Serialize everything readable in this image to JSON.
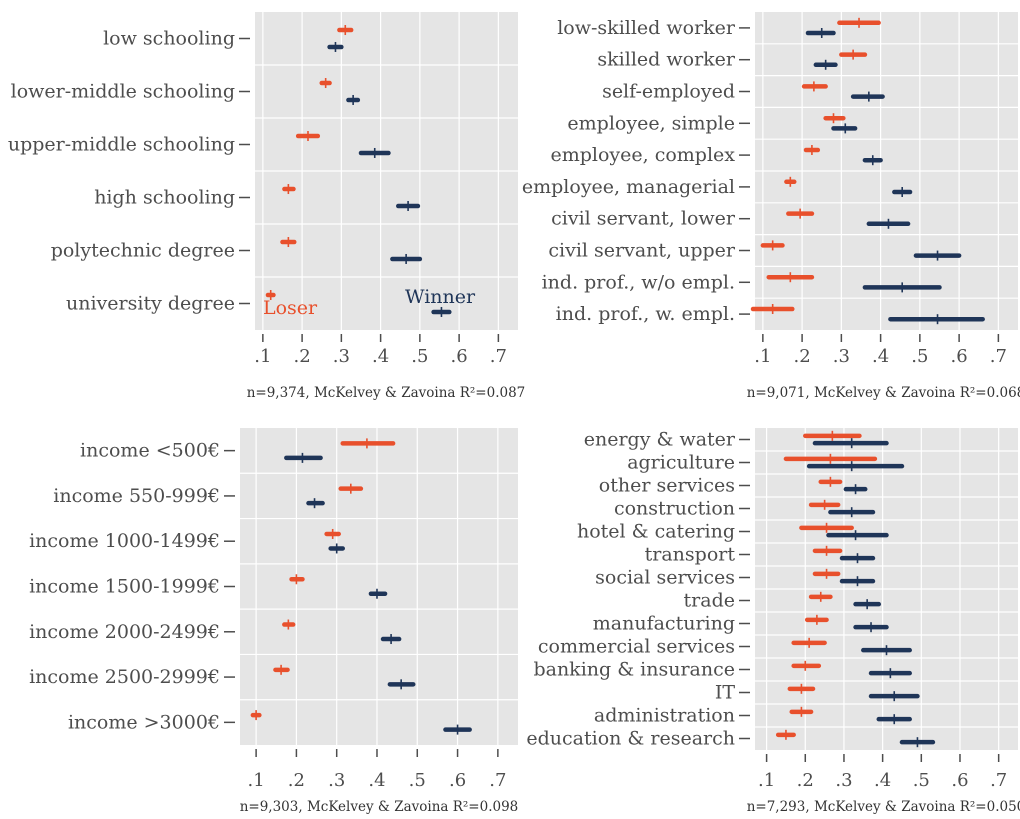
{
  "colors": {
    "loser": "#e8502c",
    "winner": "#1f3558",
    "panel_bg": "#e5e5e5",
    "grid": "#ffffff",
    "axis_text": "#4d4d4d"
  },
  "chart_data": [
    {
      "type": "scatter",
      "style": "point estimates with horizontal confidence intervals (two series)",
      "xlim": [
        0.08,
        0.75
      ],
      "xticks": [
        0.1,
        0.2,
        0.3,
        0.4,
        0.5,
        0.6,
        0.7
      ],
      "xtick_labels": [
        ".1",
        ".2",
        ".3",
        ".4",
        ".5",
        ".6",
        ".7"
      ],
      "categories": [
        "low schooling",
        "lower-middle schooling",
        "upper-middle schooling",
        "high schooling",
        "polytechnic degree",
        "university degree"
      ],
      "series": [
        {
          "name": "Loser",
          "color": "#e8502c",
          "values": [
            0.31,
            0.26,
            0.215,
            0.165,
            0.165,
            0.12
          ],
          "ci_low": [
            0.295,
            0.25,
            0.19,
            0.155,
            0.15,
            0.113
          ],
          "ci_high": [
            0.325,
            0.27,
            0.24,
            0.178,
            0.18,
            0.127
          ]
        },
        {
          "name": "Winner",
          "color": "#1f3558",
          "values": [
            0.285,
            0.33,
            0.385,
            0.47,
            0.465,
            0.555
          ],
          "ci_low": [
            0.27,
            0.318,
            0.35,
            0.445,
            0.43,
            0.535
          ],
          "ci_high": [
            0.3,
            0.342,
            0.42,
            0.495,
            0.5,
            0.575
          ]
        }
      ],
      "legend_labels": [
        {
          "text": "Loser",
          "series": "Loser"
        },
        {
          "text": "Winner",
          "series": "Winner"
        }
      ],
      "note": "n=9,374, McKelvey & Zavoina R²=0.087"
    },
    {
      "type": "scatter",
      "style": "point estimates with horizontal confidence intervals (two series)",
      "xlim": [
        0.08,
        0.75
      ],
      "xticks": [
        0.1,
        0.2,
        0.3,
        0.4,
        0.5,
        0.6,
        0.7
      ],
      "xtick_labels": [
        ".1",
        ".2",
        ".3",
        ".4",
        ".5",
        ".6",
        ".7"
      ],
      "categories": [
        "low-skilled worker",
        "skilled worker",
        "self-employed",
        "employee, simple",
        "employee, complex",
        "employee, managerial",
        "civil servant, lower",
        "civil servant, upper",
        "ind. prof., w/o empl.",
        "ind. prof., w. empl."
      ],
      "series": [
        {
          "name": "Loser",
          "color": "#e8502c",
          "values": [
            0.345,
            0.33,
            0.23,
            0.28,
            0.225,
            0.17,
            0.195,
            0.125,
            0.17,
            0.125
          ],
          "ci_low": [
            0.295,
            0.3,
            0.205,
            0.26,
            0.21,
            0.16,
            0.165,
            0.1,
            0.115,
            0.075
          ],
          "ci_high": [
            0.395,
            0.36,
            0.26,
            0.305,
            0.24,
            0.18,
            0.225,
            0.15,
            0.225,
            0.175
          ]
        },
        {
          "name": "Winner",
          "color": "#1f3558",
          "values": [
            0.25,
            0.26,
            0.37,
            0.31,
            0.38,
            0.455,
            0.42,
            0.545,
            0.455,
            0.545
          ],
          "ci_low": [
            0.215,
            0.235,
            0.33,
            0.28,
            0.36,
            0.435,
            0.37,
            0.49,
            0.36,
            0.425
          ],
          "ci_high": [
            0.28,
            0.285,
            0.405,
            0.335,
            0.4,
            0.475,
            0.47,
            0.6,
            0.55,
            0.66
          ]
        }
      ],
      "note": "n=9,071, McKelvey & Zavoina R²=0.068"
    },
    {
      "type": "scatter",
      "style": "point estimates with horizontal confidence intervals (two series)",
      "xlim": [
        0.06,
        0.75
      ],
      "xticks": [
        0.1,
        0.2,
        0.3,
        0.4,
        0.5,
        0.6,
        0.7
      ],
      "xtick_labels": [
        ".1",
        ".2",
        ".3",
        ".4",
        ".5",
        ".6",
        ".7"
      ],
      "categories": [
        "income <500€",
        "income 550-999€",
        "income 1000-1499€",
        "income 1500-1999€",
        "income 2000-2499€",
        "income 2500-2999€",
        "income >3000€"
      ],
      "series": [
        {
          "name": "Loser",
          "color": "#e8502c",
          "values": [
            0.375,
            0.335,
            0.29,
            0.2,
            0.18,
            0.162,
            0.1
          ],
          "ci_low": [
            0.315,
            0.31,
            0.275,
            0.188,
            0.17,
            0.148,
            0.092
          ],
          "ci_high": [
            0.44,
            0.36,
            0.305,
            0.215,
            0.192,
            0.178,
            0.108
          ]
        },
        {
          "name": "Winner",
          "color": "#1f3558",
          "values": [
            0.215,
            0.245,
            0.3,
            0.4,
            0.435,
            0.46,
            0.6
          ],
          "ci_low": [
            0.175,
            0.23,
            0.285,
            0.385,
            0.415,
            0.432,
            0.57
          ],
          "ci_high": [
            0.26,
            0.265,
            0.315,
            0.42,
            0.455,
            0.49,
            0.63
          ]
        }
      ],
      "note": "n=9,303, McKelvey & Zavoina R²=0.098"
    },
    {
      "type": "scatter",
      "style": "point estimates with horizontal confidence intervals (two series)",
      "xlim": [
        0.07,
        0.75
      ],
      "xticks": [
        0.1,
        0.2,
        0.3,
        0.4,
        0.5,
        0.6,
        0.7
      ],
      "xtick_labels": [
        ".1",
        ".2",
        ".3",
        ".4",
        ".5",
        ".6",
        ".7"
      ],
      "categories": [
        "energy & water",
        "agriculture",
        "other services",
        "construction",
        "hotel & catering",
        "transport",
        "social services",
        "trade",
        "manufacturing",
        "commercial services",
        "banking & insurance",
        "IT",
        "administration",
        "education & research"
      ],
      "series": [
        {
          "name": "Loser",
          "color": "#e8502c",
          "values": [
            0.27,
            0.265,
            0.265,
            0.25,
            0.255,
            0.255,
            0.255,
            0.24,
            0.23,
            0.21,
            0.2,
            0.19,
            0.19,
            0.15
          ],
          "ci_low": [
            0.2,
            0.15,
            0.24,
            0.215,
            0.19,
            0.225,
            0.225,
            0.215,
            0.205,
            0.17,
            0.17,
            0.16,
            0.165,
            0.13
          ],
          "ci_high": [
            0.34,
            0.38,
            0.29,
            0.285,
            0.32,
            0.29,
            0.285,
            0.265,
            0.255,
            0.25,
            0.235,
            0.22,
            0.215,
            0.17
          ]
        },
        {
          "name": "Winner",
          "color": "#1f3558",
          "values": [
            0.32,
            0.32,
            0.33,
            0.32,
            0.33,
            0.335,
            0.335,
            0.36,
            0.37,
            0.41,
            0.42,
            0.43,
            0.43,
            0.49
          ],
          "ci_low": [
            0.225,
            0.21,
            0.305,
            0.265,
            0.26,
            0.295,
            0.295,
            0.33,
            0.33,
            0.35,
            0.37,
            0.37,
            0.39,
            0.45
          ],
          "ci_high": [
            0.41,
            0.45,
            0.355,
            0.375,
            0.41,
            0.375,
            0.375,
            0.39,
            0.41,
            0.47,
            0.47,
            0.49,
            0.47,
            0.53
          ]
        }
      ],
      "note": "n=7,293, McKelvey & Zavoina R²=0.050"
    }
  ]
}
